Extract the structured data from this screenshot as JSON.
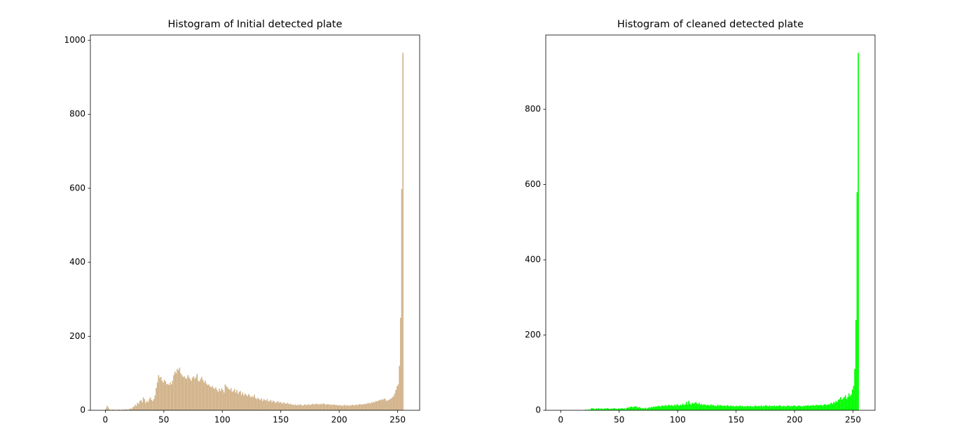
{
  "chart_data": [
    {
      "type": "histogram",
      "title": "Histogram of Initial detected plate",
      "color": "#d2b48c",
      "xlim": [
        -12.8,
        268.8
      ],
      "ylim": [
        0,
        1014.3
      ],
      "xticks": [
        0,
        50,
        100,
        150,
        200,
        250
      ],
      "yticks": [
        0,
        200,
        400,
        600,
        800,
        1000
      ],
      "bins": [
        0,
        1,
        2,
        3,
        4,
        5,
        6,
        7,
        8,
        9,
        10,
        11,
        12,
        13,
        14,
        15,
        16,
        17,
        18,
        19,
        20,
        21,
        22,
        23,
        24,
        25,
        26,
        27,
        28,
        29,
        30,
        31,
        32,
        33,
        34,
        35,
        36,
        37,
        38,
        39,
        40,
        41,
        42,
        43,
        44,
        45,
        46,
        47,
        48,
        49,
        50,
        51,
        52,
        53,
        54,
        55,
        56,
        57,
        58,
        59,
        60,
        61,
        62,
        63,
        64,
        65,
        66,
        67,
        68,
        69,
        70,
        71,
        72,
        73,
        74,
        75,
        76,
        77,
        78,
        79,
        80,
        81,
        82,
        83,
        84,
        85,
        86,
        87,
        88,
        89,
        90,
        91,
        92,
        93,
        94,
        95,
        96,
        97,
        98,
        99,
        100,
        101,
        102,
        103,
        104,
        105,
        106,
        107,
        108,
        109,
        110,
        111,
        112,
        113,
        114,
        115,
        116,
        117,
        118,
        119,
        120,
        121,
        122,
        123,
        124,
        125,
        126,
        127,
        128,
        129,
        130,
        131,
        132,
        133,
        134,
        135,
        136,
        137,
        138,
        139,
        140,
        141,
        142,
        143,
        144,
        145,
        146,
        147,
        148,
        149,
        150,
        151,
        152,
        153,
        154,
        155,
        156,
        157,
        158,
        159,
        160,
        161,
        162,
        163,
        164,
        165,
        166,
        167,
        168,
        169,
        170,
        171,
        172,
        173,
        174,
        175,
        176,
        177,
        178,
        179,
        180,
        181,
        182,
        183,
        184,
        185,
        186,
        187,
        188,
        189,
        190,
        191,
        192,
        193,
        194,
        195,
        196,
        197,
        198,
        199,
        200,
        201,
        202,
        203,
        204,
        205,
        206,
        207,
        208,
        209,
        210,
        211,
        212,
        213,
        214,
        215,
        216,
        217,
        218,
        219,
        220,
        221,
        222,
        223,
        224,
        225,
        226,
        227,
        228,
        229,
        230,
        231,
        232,
        233,
        234,
        235,
        236,
        237,
        238,
        239,
        240,
        241,
        242,
        243,
        244,
        245,
        246,
        247,
        248,
        249,
        250,
        251,
        252,
        253,
        254,
        255,
        256
      ],
      "values": [
        5,
        12,
        8,
        2,
        1,
        1,
        2,
        1,
        0,
        1,
        1,
        2,
        1,
        0,
        1,
        2,
        1,
        3,
        2,
        1,
        3,
        5,
        4,
        8,
        10,
        15,
        12,
        20,
        18,
        25,
        28,
        22,
        35,
        30,
        20,
        25,
        22,
        30,
        35,
        28,
        25,
        30,
        40,
        60,
        75,
        95,
        88,
        90,
        80,
        75,
        82,
        78,
        70,
        72,
        68,
        75,
        70,
        80,
        95,
        105,
        100,
        112,
        108,
        115,
        100,
        95,
        90,
        92,
        88,
        85,
        95,
        90,
        85,
        80,
        88,
        92,
        85,
        90,
        98,
        80,
        78,
        85,
        90,
        82,
        75,
        80,
        72,
        68,
        70,
        65,
        62,
        66,
        60,
        58,
        62,
        55,
        50,
        58,
        52,
        60,
        55,
        48,
        70,
        65,
        62,
        58,
        55,
        60,
        50,
        52,
        58,
        48,
        55,
        45,
        50,
        52,
        42,
        48,
        40,
        45,
        42,
        38,
        44,
        40,
        35,
        38,
        36,
        42,
        33,
        30,
        34,
        30,
        28,
        32,
        25,
        30,
        28,
        26,
        30,
        24,
        25,
        28,
        22,
        26,
        24,
        20,
        22,
        25,
        20,
        23,
        20,
        18,
        22,
        19,
        17,
        20,
        18,
        16,
        18,
        15,
        15,
        14,
        16,
        13,
        15,
        14,
        16,
        15,
        12,
        14,
        16,
        15,
        13,
        17,
        14,
        15,
        16,
        18,
        15,
        17,
        18,
        16,
        17,
        15,
        18,
        16,
        19,
        17,
        15,
        16,
        17,
        15,
        16,
        14,
        15,
        16,
        14,
        15,
        13,
        14,
        13,
        14,
        12,
        13,
        15,
        12,
        14,
        13,
        12,
        14,
        13,
        15,
        14,
        13,
        16,
        14,
        15,
        17,
        16,
        15,
        17,
        16,
        18,
        17,
        20,
        19,
        18,
        22,
        20,
        23,
        22,
        25,
        24,
        26,
        28,
        27,
        30,
        28,
        32,
        30,
        25,
        27,
        28,
        30,
        32,
        35,
        38,
        45,
        55,
        65,
        70,
        120,
        250,
        598,
        966,
        0
      ]
    },
    {
      "type": "histogram",
      "title": "Histogram of cleaned detected plate",
      "color": "#00ff00",
      "xlim": [
        -12.8,
        268.8
      ],
      "ylim": [
        0,
        997.5
      ],
      "xticks": [
        0,
        50,
        100,
        150,
        200,
        250
      ],
      "yticks": [
        0,
        200,
        400,
        600,
        800
      ],
      "bins": [
        0,
        1,
        2,
        3,
        4,
        5,
        6,
        7,
        8,
        9,
        10,
        11,
        12,
        13,
        14,
        15,
        16,
        17,
        18,
        19,
        20,
        21,
        22,
        23,
        24,
        25,
        26,
        27,
        28,
        29,
        30,
        31,
        32,
        33,
        34,
        35,
        36,
        37,
        38,
        39,
        40,
        41,
        42,
        43,
        44,
        45,
        46,
        47,
        48,
        49,
        50,
        51,
        52,
        53,
        54,
        55,
        56,
        57,
        58,
        59,
        60,
        61,
        62,
        63,
        64,
        65,
        66,
        67,
        68,
        69,
        70,
        71,
        72,
        73,
        74,
        75,
        76,
        77,
        78,
        79,
        80,
        81,
        82,
        83,
        84,
        85,
        86,
        87,
        88,
        89,
        90,
        91,
        92,
        93,
        94,
        95,
        96,
        97,
        98,
        99,
        100,
        101,
        102,
        103,
        104,
        105,
        106,
        107,
        108,
        109,
        110,
        111,
        112,
        113,
        114,
        115,
        116,
        117,
        118,
        119,
        120,
        121,
        122,
        123,
        124,
        125,
        126,
        127,
        128,
        129,
        130,
        131,
        132,
        133,
        134,
        135,
        136,
        137,
        138,
        139,
        140,
        141,
        142,
        143,
        144,
        145,
        146,
        147,
        148,
        149,
        150,
        151,
        152,
        153,
        154,
        155,
        156,
        157,
        158,
        159,
        160,
        161,
        162,
        163,
        164,
        165,
        166,
        167,
        168,
        169,
        170,
        171,
        172,
        173,
        174,
        175,
        176,
        177,
        178,
        179,
        180,
        181,
        182,
        183,
        184,
        185,
        186,
        187,
        188,
        189,
        190,
        191,
        192,
        193,
        194,
        195,
        196,
        197,
        198,
        199,
        200,
        201,
        202,
        203,
        204,
        205,
        206,
        207,
        208,
        209,
        210,
        211,
        212,
        213,
        214,
        215,
        216,
        217,
        218,
        219,
        220,
        221,
        222,
        223,
        224,
        225,
        226,
        227,
        228,
        229,
        230,
        231,
        232,
        233,
        234,
        235,
        236,
        237,
        238,
        239,
        240,
        241,
        242,
        243,
        244,
        245,
        246,
        247,
        248,
        249,
        250,
        251,
        252,
        253,
        254,
        255,
        256
      ],
      "values": [
        0,
        0,
        0,
        0,
        0,
        0,
        0,
        0,
        0,
        0,
        0,
        0,
        0,
        0,
        0,
        0,
        0,
        0,
        0,
        0,
        1,
        2,
        1,
        2,
        1,
        3,
        6,
        5,
        4,
        3,
        5,
        4,
        6,
        3,
        5,
        4,
        3,
        5,
        4,
        6,
        5,
        4,
        3,
        5,
        4,
        6,
        5,
        4,
        3,
        5,
        4,
        5,
        6,
        4,
        5,
        3,
        6,
        8,
        7,
        9,
        10,
        8,
        9,
        11,
        10,
        8,
        7,
        9,
        6,
        5,
        6,
        5,
        7,
        4,
        6,
        8,
        7,
        9,
        8,
        10,
        9,
        11,
        10,
        12,
        11,
        10,
        13,
        12,
        11,
        14,
        12,
        13,
        15,
        12,
        14,
        13,
        11,
        15,
        12,
        16,
        14,
        12,
        15,
        13,
        18,
        14,
        16,
        22,
        15,
        25,
        18,
        15,
        20,
        17,
        19,
        22,
        18,
        16,
        20,
        15,
        17,
        14,
        16,
        15,
        13,
        15,
        14,
        12,
        16,
        13,
        14,
        12,
        13,
        11,
        15,
        12,
        14,
        13,
        11,
        12,
        13,
        11,
        14,
        12,
        10,
        13,
        11,
        12,
        10,
        11,
        12,
        10,
        11,
        13,
        10,
        12,
        9,
        11,
        10,
        12,
        11,
        10,
        12,
        9,
        11,
        10,
        13,
        11,
        10,
        12,
        11,
        13,
        10,
        12,
        11,
        14,
        12,
        10,
        13,
        11,
        12,
        11,
        13,
        10,
        12,
        11,
        12,
        14,
        11,
        10,
        12,
        11,
        10,
        12,
        13,
        11,
        10,
        12,
        11,
        13,
        12,
        10,
        11,
        13,
        12,
        11,
        10,
        12,
        11,
        13,
        12,
        14,
        11,
        13,
        12,
        14,
        13,
        12,
        15,
        13,
        14,
        13,
        15,
        12,
        14,
        16,
        15,
        14,
        16,
        15,
        18,
        20,
        17,
        22,
        20,
        25,
        22,
        28,
        30,
        35,
        28,
        32,
        35,
        40,
        30,
        35,
        45,
        38,
        42,
        55,
        65,
        110,
        240,
        580,
        950,
        0
      ]
    }
  ]
}
